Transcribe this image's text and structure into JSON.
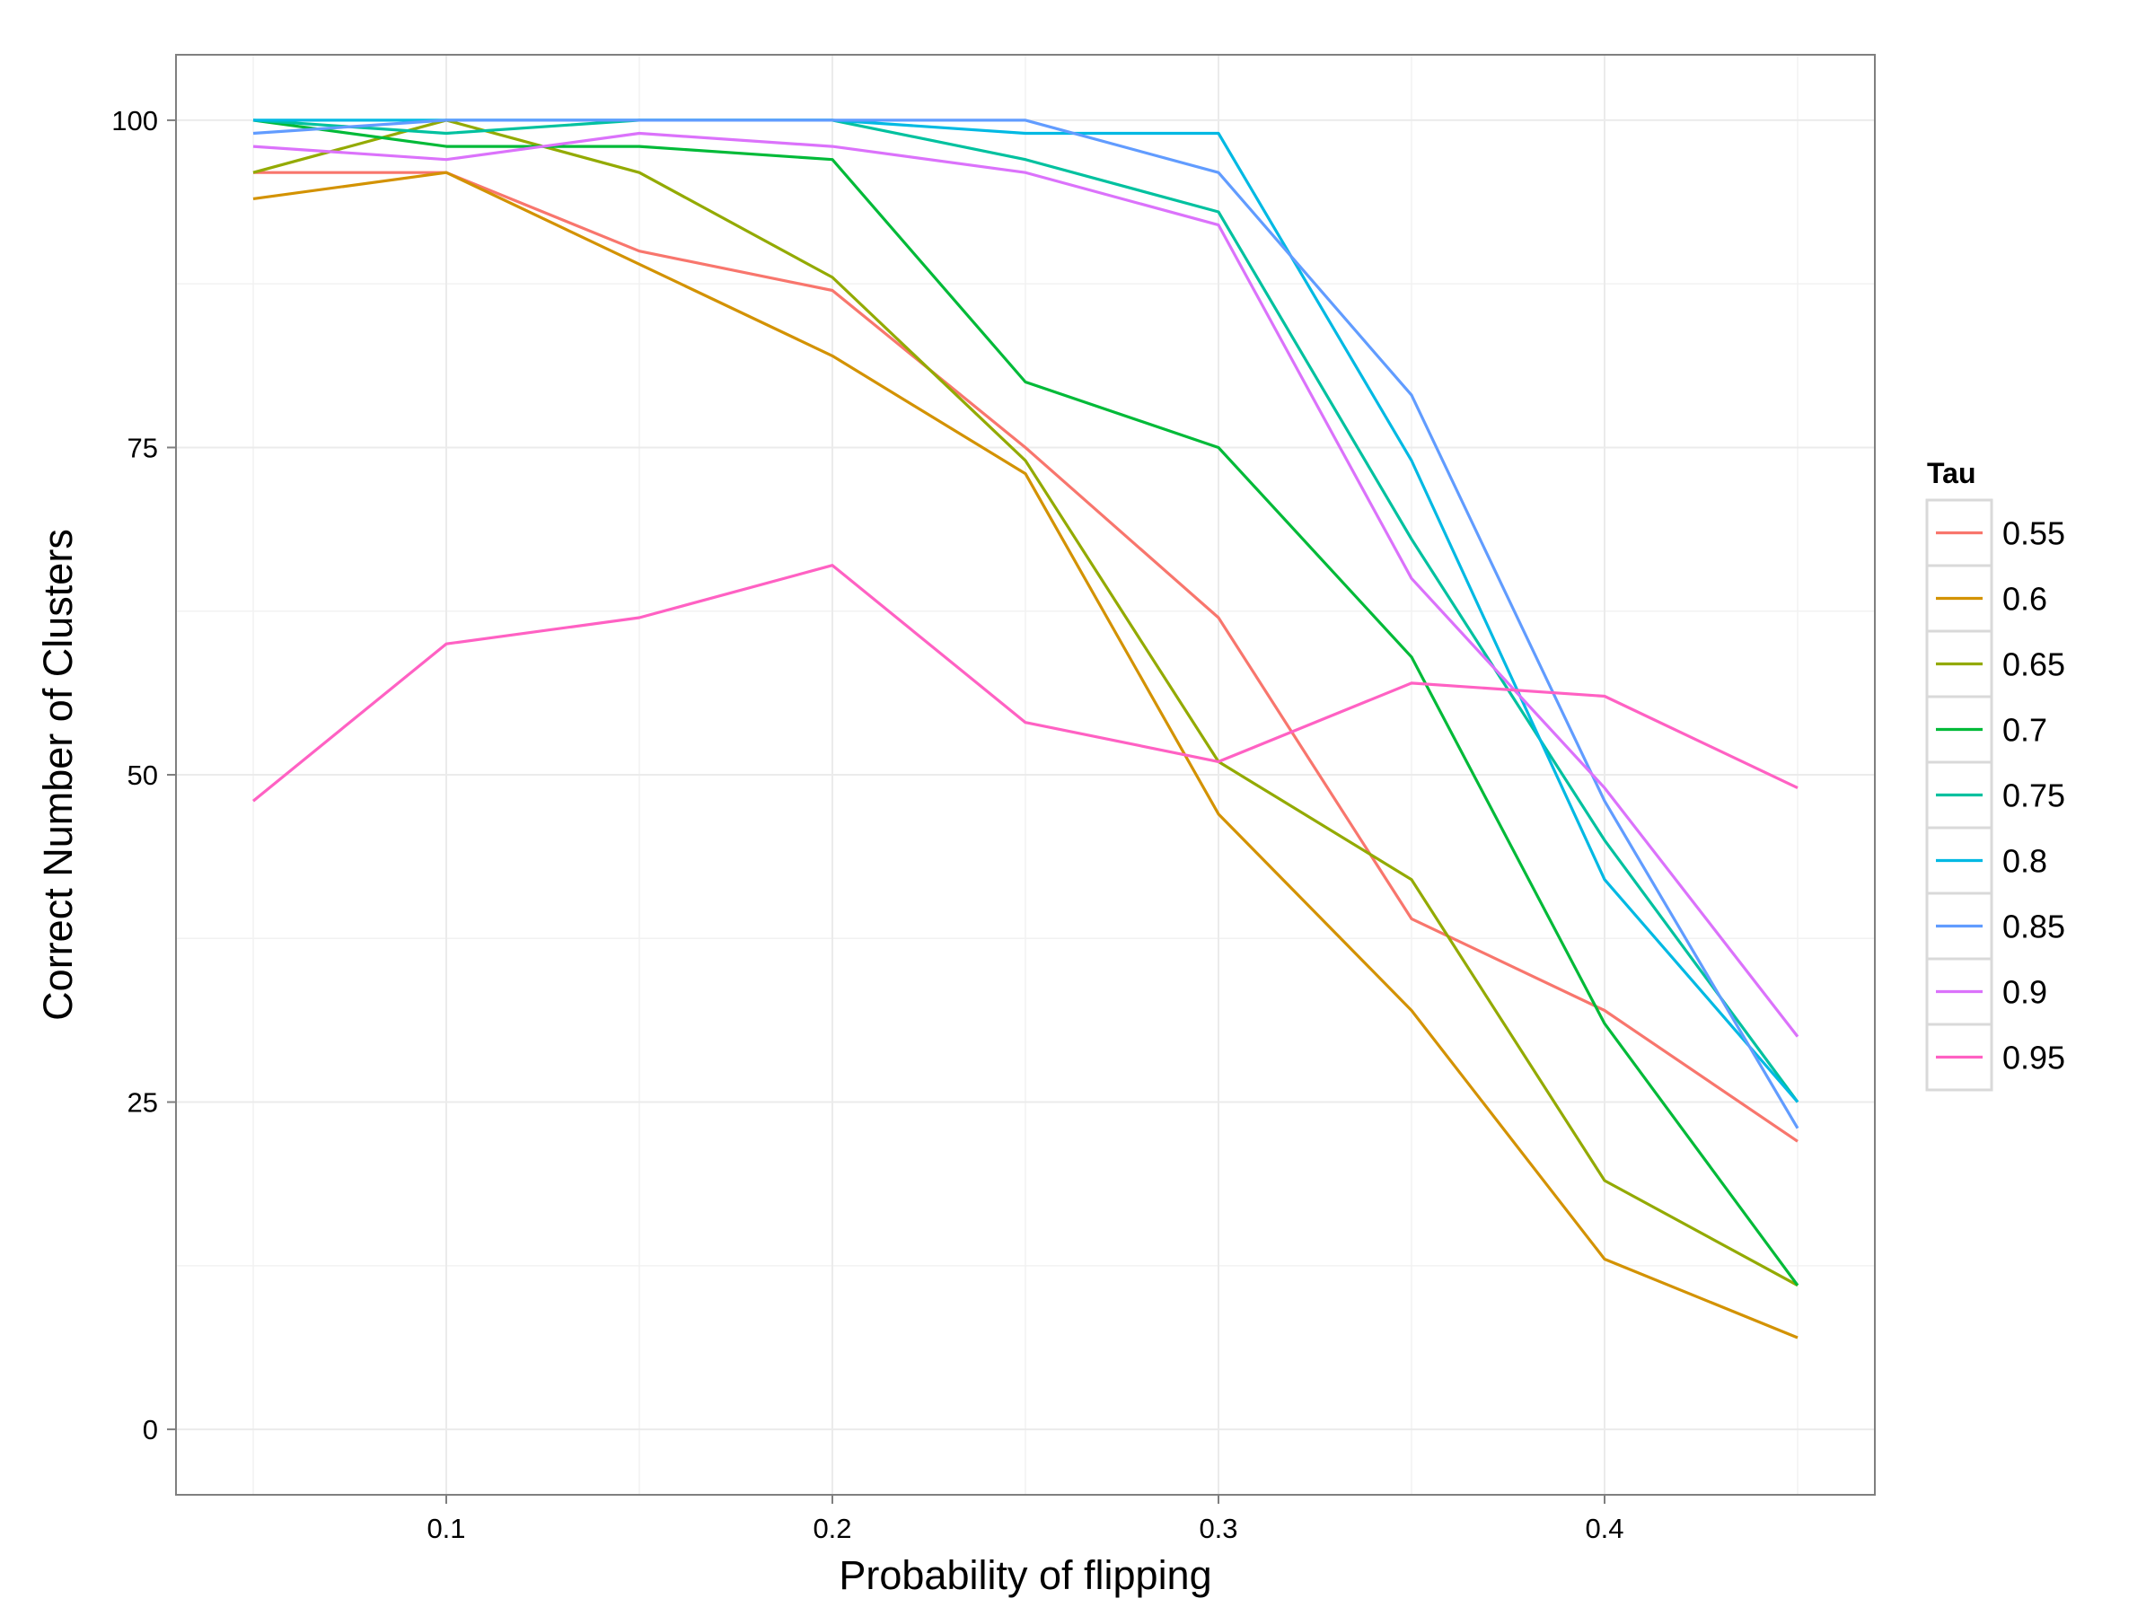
{
  "chart_data": {
    "type": "line",
    "title": "",
    "xlabel": "Probability of flipping",
    "ylabel": "Correct Number of Clusters",
    "xlim": [
      0.03,
      0.47
    ],
    "ylim": [
      -5,
      105
    ],
    "x_ticks": [
      0.1,
      0.2,
      0.3,
      0.4
    ],
    "y_ticks": [
      0,
      25,
      50,
      75,
      100
    ],
    "grid": true,
    "legend": {
      "title": "Tau",
      "position": "right"
    },
    "x": [
      0.05,
      0.1,
      0.15,
      0.2,
      0.25,
      0.3,
      0.35,
      0.4,
      0.45
    ],
    "series": [
      {
        "name": "0.55",
        "color": "#F8766D",
        "values": [
          96,
          96,
          90,
          87,
          75,
          62,
          39,
          32,
          22
        ]
      },
      {
        "name": "0.6",
        "color": "#D39200",
        "values": [
          94,
          96,
          89,
          82,
          73,
          47,
          32,
          13,
          7
        ]
      },
      {
        "name": "0.65",
        "color": "#93AA00",
        "values": [
          96,
          100,
          96,
          88,
          74,
          51,
          42,
          19,
          11
        ]
      },
      {
        "name": "0.7",
        "color": "#00BA38",
        "values": [
          100,
          98,
          98,
          97,
          80,
          75,
          59,
          31,
          11
        ]
      },
      {
        "name": "0.75",
        "color": "#00C19F",
        "values": [
          100,
          99,
          100,
          100,
          97,
          93,
          68,
          45,
          25
        ]
      },
      {
        "name": "0.8",
        "color": "#00B9E3",
        "values": [
          100,
          100,
          100,
          100,
          99,
          99,
          74,
          42,
          25
        ]
      },
      {
        "name": "0.85",
        "color": "#619CFF",
        "values": [
          99,
          100,
          100,
          100,
          100,
          96,
          79,
          48,
          23
        ]
      },
      {
        "name": "0.9",
        "color": "#DB72FB",
        "values": [
          98,
          97,
          99,
          98,
          96,
          92,
          65,
          49,
          30
        ]
      },
      {
        "name": "0.95",
        "color": "#FF61C3",
        "values": [
          48,
          60,
          62,
          66,
          54,
          51,
          57,
          56,
          49
        ]
      }
    ]
  }
}
